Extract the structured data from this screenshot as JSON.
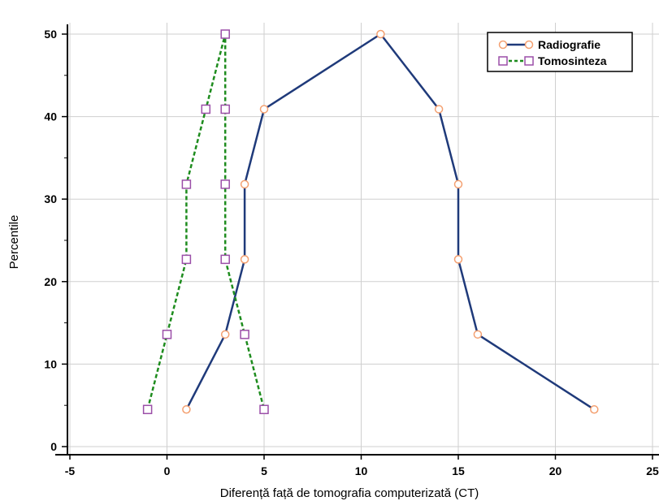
{
  "chart_data": {
    "type": "line",
    "title": "",
    "xlabel": "Diferență față de tomografia computerizată (CT)",
    "ylabel": "Percentile",
    "xlim": [
      -6,
      25
    ],
    "ylim": [
      -1,
      52
    ],
    "x_ticks": [
      -5,
      0,
      5,
      10,
      15,
      20,
      25
    ],
    "y_ticks": [
      0,
      10,
      20,
      30,
      40,
      50
    ],
    "grid": true,
    "legend_position": "top-right",
    "series": [
      {
        "name": "Radiografie",
        "color": "#1f3a7a",
        "marker_color": "#f4a070",
        "marker": "circle",
        "line_style": "solid",
        "points": [
          [
            1,
            4.5
          ],
          [
            3,
            13.6
          ],
          [
            4,
            22.7
          ],
          [
            4,
            31.8
          ],
          [
            5,
            40.9
          ],
          [
            11,
            50
          ],
          [
            14,
            40.9
          ],
          [
            15,
            31.8
          ],
          [
            15,
            22.7
          ],
          [
            16,
            13.6
          ],
          [
            22,
            4.5
          ]
        ]
      },
      {
        "name": "Tomosinteza",
        "color": "#1e8c1e",
        "marker_color": "#9b4fa8",
        "marker": "square",
        "line_style": "dashed",
        "points": [
          [
            -1,
            4.5
          ],
          [
            0,
            13.6
          ],
          [
            1,
            22.7
          ],
          [
            1,
            31.8
          ],
          [
            2,
            40.9
          ],
          [
            3,
            50
          ],
          [
            3,
            40.9
          ],
          [
            3,
            31.8
          ],
          [
            3,
            22.7
          ],
          [
            4,
            13.6
          ],
          [
            5,
            4.5
          ]
        ]
      }
    ]
  }
}
